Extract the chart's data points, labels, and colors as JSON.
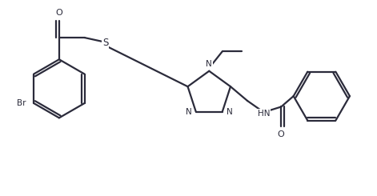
{
  "bg_color": "#ffffff",
  "line_color": "#2b2b3b",
  "line_width": 1.6,
  "figsize": [
    4.71,
    2.45
  ],
  "dpi": 100,
  "xlim": [
    0,
    10
  ],
  "ylim": [
    0,
    5.2
  ]
}
